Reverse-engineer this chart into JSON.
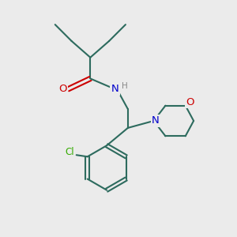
{
  "background_color": "#ebebeb",
  "bond_color": "#2d6b5e",
  "O_color": "#cc0000",
  "N_color": "#0000cc",
  "Cl_color": "#33aa00",
  "H_color": "#888888",
  "line_width": 1.5,
  "figsize": [
    3.0,
    3.0
  ],
  "dpi": 100,
  "xlim": [
    0,
    10
  ],
  "ylim": [
    0,
    10
  ],
  "font_size": 8.5
}
